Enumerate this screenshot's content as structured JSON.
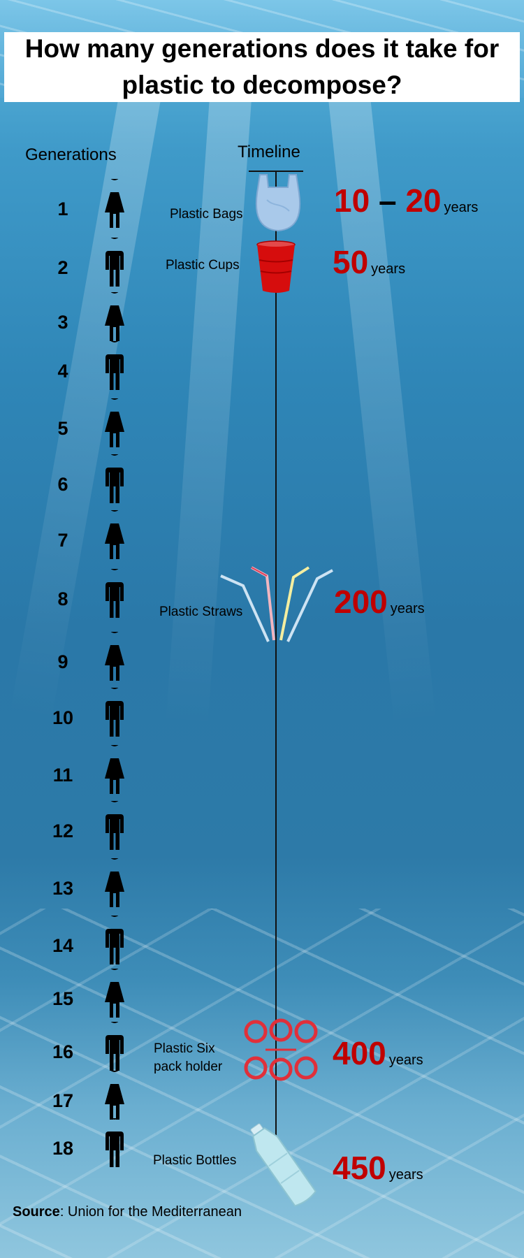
{
  "title": "How many generations does it take for plastic to decompose?",
  "headers": {
    "generations": "Generations",
    "timeline": "Timeline"
  },
  "generations": [
    "1",
    "2",
    "3",
    "4",
    "5",
    "6",
    "7",
    "8",
    "9",
    "10",
    "11",
    "12",
    "13",
    "14",
    "15",
    "16",
    "17",
    "18"
  ],
  "items": [
    {
      "label": "Plastic Bags",
      "value_a": "10",
      "dash": "–",
      "value_b": "20",
      "unit": "years",
      "icon": "plastic-bag-icon"
    },
    {
      "label": "Plastic Cups",
      "value": "50",
      "unit": "years",
      "icon": "red-cup-icon"
    },
    {
      "label": "Plastic Straws",
      "value": "200",
      "unit": "years",
      "icon": "straws-icon"
    },
    {
      "label_line1": "Plastic Six",
      "label_line2": "pack holder",
      "value": "400",
      "unit": "years",
      "icon": "six-pack-ring-icon"
    },
    {
      "label": "Plastic Bottles",
      "value": "450",
      "unit": "years",
      "icon": "plastic-bottle-icon"
    }
  ],
  "source": {
    "prefix": "Source",
    "text": ": Union for the Mediterranean"
  },
  "colors": {
    "value_red": "#c00000",
    "title_bg": "#ffffff",
    "water": "#2f86b7"
  }
}
